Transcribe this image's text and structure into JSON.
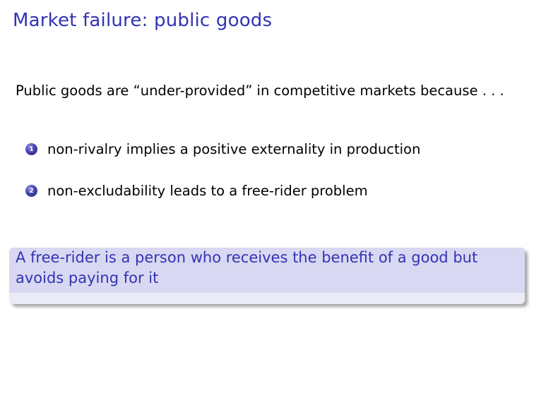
{
  "slide": {
    "title": "Market failure: public goods",
    "intro": "Public goods are “under-provided” in competitive markets because . . .",
    "items": [
      {
        "number": "1",
        "text": "non-rivalry implies a positive externality in production"
      },
      {
        "number": "2",
        "text": "non-excludability leads to a free-rider problem"
      }
    ],
    "definition_block": {
      "text": "A free-rider is a person who receives the benefit of a good but avoids paying for it"
    }
  },
  "colors": {
    "title": "#3333b3",
    "block_title_band": "#d8d8f2",
    "block_body": "#ebebf7",
    "enum_ball": "#4545b3"
  }
}
